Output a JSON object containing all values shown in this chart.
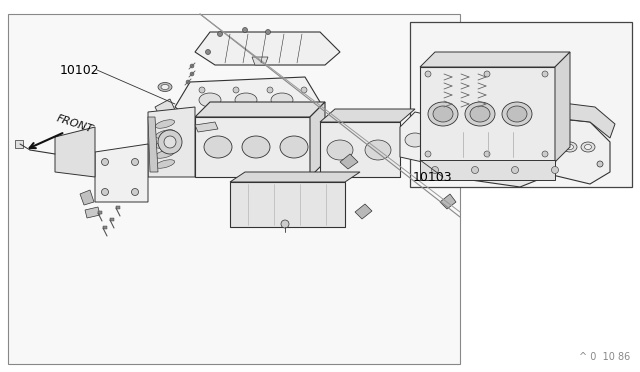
{
  "bg_color": "#ffffff",
  "line_color": "#333333",
  "fill_light": "#f0f0f0",
  "fill_mid": "#e0e0e0",
  "fill_dark": "#cccccc",
  "label_10102": "10102",
  "label_10103": "10103",
  "watermark": "^ 0  10 86",
  "front_label": "FRONT",
  "title_color": "#000000",
  "font_size_label": 9,
  "font_size_watermark": 7,
  "font_size_front": 8
}
